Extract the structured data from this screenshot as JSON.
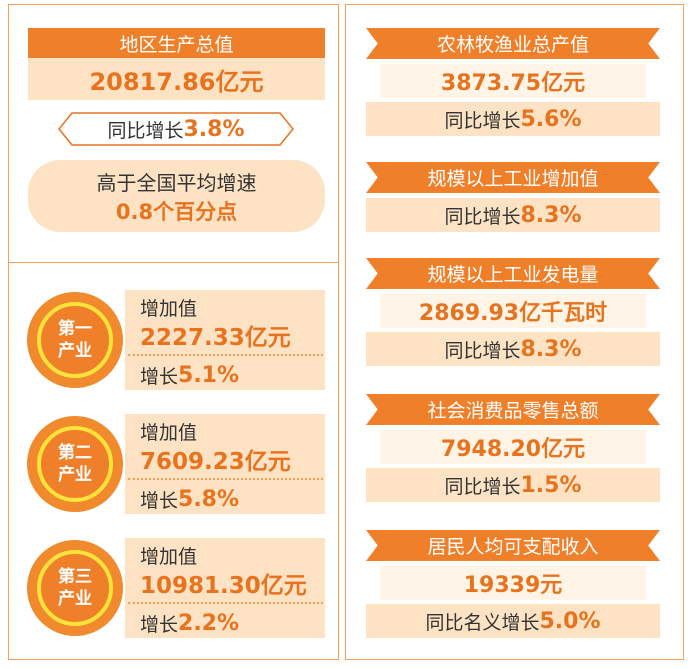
{
  "summary": {
    "title": "地区生产总值",
    "value": "20817.86亿元",
    "growth_label": "同比增长",
    "growth_value": "3.8%",
    "compare_line1": "高于全国平均增速",
    "compare_line2": "0.8个百分点"
  },
  "industries": [
    {
      "badge_line1": "第一",
      "badge_line2": "产业",
      "added_label": "增加值",
      "added_value": "2227.33亿元",
      "growth_label": "增长",
      "growth_value": "5.1%"
    },
    {
      "badge_line1": "第二",
      "badge_line2": "产业",
      "added_label": "增加值",
      "added_value": "7609.23亿元",
      "growth_label": "增长",
      "growth_value": "5.8%"
    },
    {
      "badge_line1": "第三",
      "badge_line2": "产业",
      "added_label": "增加值",
      "added_value": "10981.30亿元",
      "growth_label": "增长",
      "growth_value": "2.2%"
    }
  ],
  "indicators": [
    {
      "title": "农林牧渔业总产值",
      "value": "3873.75亿元",
      "growth_label": "同比增长",
      "growth_value": "5.6%"
    },
    {
      "title": "规模以上工业增加值",
      "growth_label": "同比增长",
      "growth_value": "8.3%"
    },
    {
      "title": "规模以上工业发电量",
      "value": "2869.93亿千瓦时",
      "growth_label": "同比增长",
      "growth_value": "8.3%"
    },
    {
      "title": "社会消费品零售总额",
      "value": "7948.20亿元",
      "growth_label": "同比增长",
      "growth_value": "1.5%"
    },
    {
      "title": "居民人均可支配收入",
      "value": "19339元",
      "growth_label": "同比名义增长",
      "growth_value": "5.0%"
    }
  ]
}
